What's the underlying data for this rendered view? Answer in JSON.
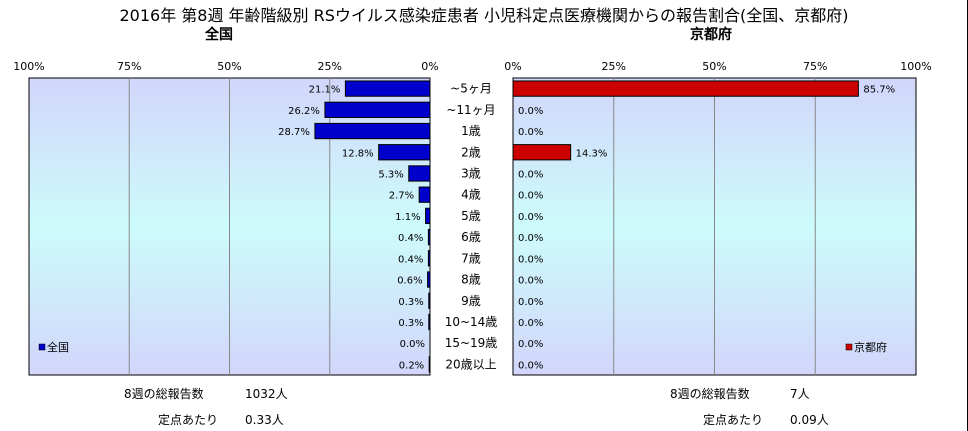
{
  "title": "2016年 第8週 年齢階級別 RSウイルス感染症患者 小児科定点医療機関からの報告割合(全国、京都府)",
  "left_panel": {
    "heading": "全国",
    "legend": "全国"
  },
  "right_panel": {
    "heading": "京都府",
    "legend": "京都府"
  },
  "footer": {
    "left_total_label": "8週の総報告数",
    "left_total_value": "1032人",
    "left_per_label": "定点あたり",
    "left_per_value": "0.33人",
    "right_total_label": "8週の総報告数",
    "right_total_value": "7人",
    "right_per_label": "定点あたり",
    "right_per_value": "0.09人"
  },
  "chart_data": [
    {
      "type": "bar",
      "orientation": "horizontal",
      "direction": "right-to-left",
      "heading": "全国",
      "categories": [
        "~5ヶ月",
        "~11ヶ月",
        "1歳",
        "2歳",
        "3歳",
        "4歳",
        "5歳",
        "6歳",
        "7歳",
        "8歳",
        "9歳",
        "10~14歳",
        "15~19歳",
        "20歳以上"
      ],
      "series": [
        {
          "name": "全国",
          "color": "#0000cc",
          "values": [
            21.1,
            26.2,
            28.7,
            12.8,
            5.3,
            2.7,
            1.1,
            0.4,
            0.4,
            0.6,
            0.3,
            0.3,
            0.0,
            0.2
          ]
        }
      ],
      "value_labels": [
        "21.1%",
        "26.2%",
        "28.7%",
        "12.8%",
        "5.3%",
        "2.7%",
        "1.1%",
        "0.4%",
        "0.4%",
        "0.6%",
        "0.3%",
        "0.3%",
        "0.0%",
        "0.2%"
      ],
      "xticks": [
        "100%",
        "75%",
        "50%",
        "25%",
        "0%"
      ],
      "xlim": [
        0,
        100
      ],
      "grid": true,
      "legend_position": "bottom-left"
    },
    {
      "type": "bar",
      "orientation": "horizontal",
      "direction": "left-to-right",
      "heading": "京都府",
      "categories": [
        "~5ヶ月",
        "~11ヶ月",
        "1歳",
        "2歳",
        "3歳",
        "4歳",
        "5歳",
        "6歳",
        "7歳",
        "8歳",
        "9歳",
        "10~14歳",
        "15~19歳",
        "20歳以上"
      ],
      "series": [
        {
          "name": "京都府",
          "color": "#cc0000",
          "values": [
            85.7,
            0.0,
            0.0,
            14.3,
            0.0,
            0.0,
            0.0,
            0.0,
            0.0,
            0.0,
            0.0,
            0.0,
            0.0,
            0.0
          ]
        }
      ],
      "value_labels": [
        "85.7%",
        "0.0%",
        "0.0%",
        "14.3%",
        "0.0%",
        "0.0%",
        "0.0%",
        "0.0%",
        "0.0%",
        "0.0%",
        "0.0%",
        "0.0%",
        "0.0%",
        "0.0%"
      ],
      "xticks": [
        "0%",
        "25%",
        "50%",
        "75%",
        "100%"
      ],
      "xlim": [
        0,
        100
      ],
      "grid": true,
      "legend_position": "bottom-right"
    }
  ]
}
